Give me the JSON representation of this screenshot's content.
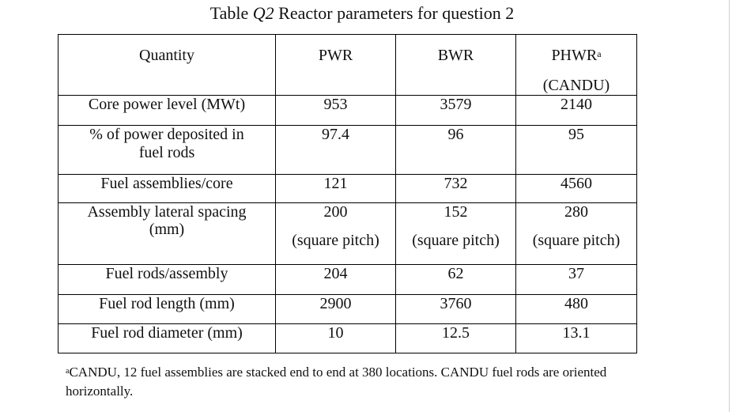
{
  "caption": {
    "label": "Table",
    "number": "Q2",
    "text": "Reactor parameters for question 2"
  },
  "table": {
    "header": {
      "quantity": "Quantity",
      "pwr": "PWR",
      "bwr": "BWR",
      "phwr": "PHWR",
      "phwr_sup": "a",
      "phwr_sub": "(CANDU)"
    },
    "rows": [
      {
        "name": "Core power level (MWt)",
        "pwr": "953",
        "bwr": "3579",
        "phwr": "2140"
      },
      {
        "name_line1": "% of power deposited in",
        "name_line2": "fuel rods",
        "pwr": "97.4",
        "bwr": "96",
        "phwr": "95"
      },
      {
        "name": "Fuel assemblies/core",
        "pwr": "121",
        "bwr": "732",
        "phwr": "4560"
      },
      {
        "name_line1": "Assembly lateral spacing",
        "name_line2": "(mm)",
        "pwr": "200",
        "bwr": "152",
        "phwr": "280",
        "pwr_note": "(square pitch)",
        "bwr_note": "(square pitch)",
        "phwr_note": "(square pitch)"
      },
      {
        "name": "Fuel rods/assembly",
        "pwr": "204",
        "bwr": "62",
        "phwr": "37"
      },
      {
        "name": "Fuel rod length (mm)",
        "pwr": "2900",
        "bwr": "3760",
        "phwr": "480"
      },
      {
        "name": "Fuel rod diameter (mm)",
        "pwr": "10",
        "bwr": "12.5",
        "phwr": "13.1"
      }
    ]
  },
  "footnote": {
    "marker": "a",
    "text": "CANDU, 12 fuel assemblies are stacked end to end at 380 locations. CANDU fuel rods are oriented horizontally."
  }
}
